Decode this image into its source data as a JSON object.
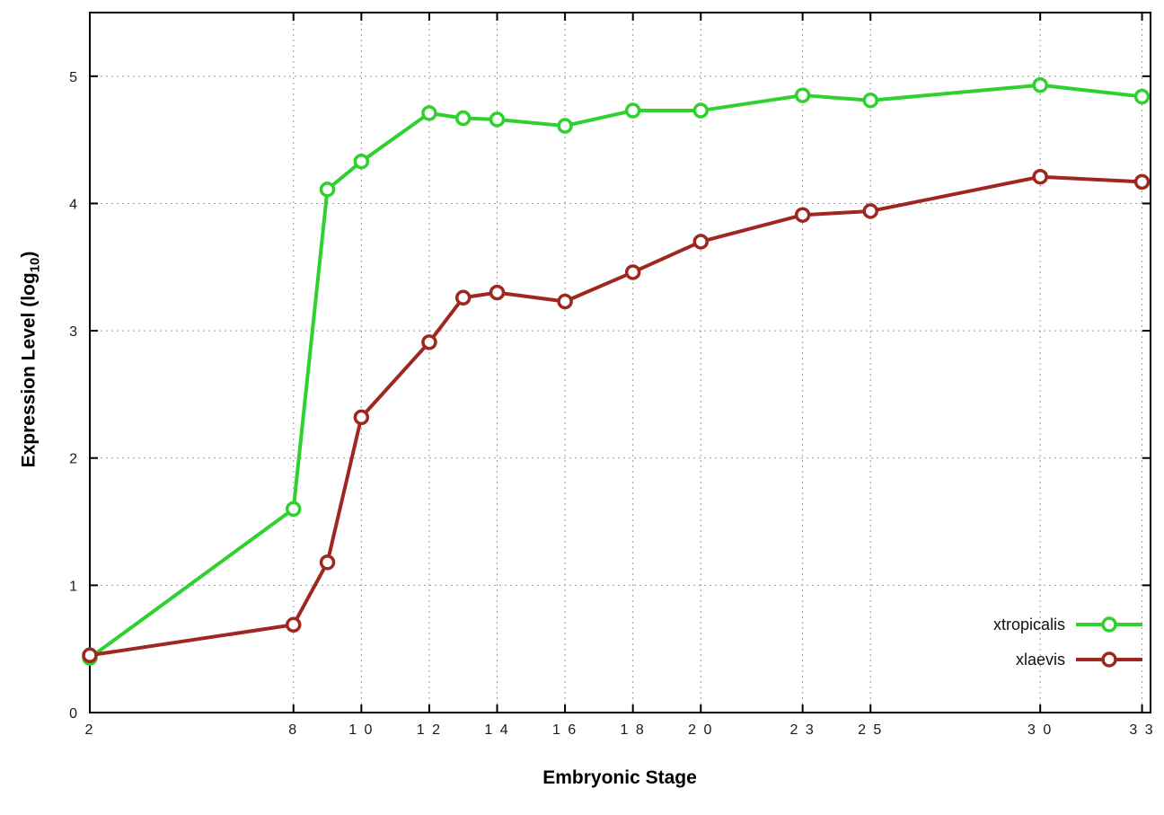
{
  "chart_data": {
    "type": "line",
    "title": "",
    "xlabel": "Embryonic Stage",
    "ylabel_main": "Expression Level (log",
    "ylabel_sub": "10",
    "ylabel_close": ")",
    "xlim": [
      2,
      33.25
    ],
    "ylim": [
      0,
      5.5
    ],
    "x_ticks": [
      2,
      8,
      10,
      12,
      14,
      16,
      18,
      20,
      23,
      25,
      30,
      33
    ],
    "y_ticks": [
      0,
      1,
      2,
      3,
      4,
      5
    ],
    "grid": true,
    "grid_color": "#9b9b9b",
    "border_color": "#000000",
    "legend_position": "bottom-right",
    "x": [
      2,
      8,
      9,
      10,
      12,
      13,
      14,
      16,
      18,
      20,
      23,
      25,
      30,
      33
    ],
    "series": [
      {
        "name": "xtropicalis",
        "color": "#2ed12e",
        "values": [
          0.43,
          1.6,
          4.11,
          4.33,
          4.71,
          4.67,
          4.66,
          4.61,
          4.73,
          4.73,
          4.85,
          4.81,
          4.93,
          4.84
        ]
      },
      {
        "name": "xlaevis",
        "color": "#9e2820",
        "values": [
          0.45,
          0.69,
          1.18,
          2.32,
          2.91,
          3.26,
          3.3,
          3.23,
          3.46,
          3.7,
          3.91,
          3.94,
          4.21,
          4.17
        ]
      }
    ]
  }
}
